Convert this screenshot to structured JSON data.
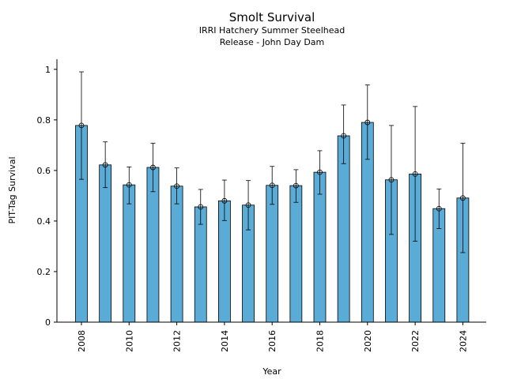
{
  "chart_data": {
    "type": "bar",
    "title": "Smolt Survival",
    "subtitle_lines": [
      "IRRI Hatchery Summer Steelhead",
      "Release - John Day Dam"
    ],
    "xlabel": "Year",
    "ylabel": "PIT-Tag Survival",
    "ylim": [
      0,
      1.04
    ],
    "yticks": [
      0,
      0.2,
      0.4,
      0.6,
      0.8,
      1
    ],
    "ytick_labels": [
      "0",
      "0.2",
      "0.4",
      "0.6",
      "0.8",
      "1"
    ],
    "categories": [
      2008,
      2009,
      2010,
      2011,
      2012,
      2013,
      2014,
      2015,
      2016,
      2017,
      2018,
      2019,
      2020,
      2021,
      2022,
      2023,
      2024
    ],
    "xtick_labels": [
      "2008",
      "2010",
      "2012",
      "2014",
      "2016",
      "2018",
      "2020",
      "2022",
      "2024"
    ],
    "values": [
      0.778,
      0.622,
      0.543,
      0.612,
      0.538,
      0.456,
      0.48,
      0.463,
      0.541,
      0.54,
      0.593,
      0.737,
      0.79,
      0.563,
      0.586,
      0.449,
      0.491
    ],
    "error_low": [
      0.565,
      0.532,
      0.468,
      0.516,
      0.468,
      0.387,
      0.402,
      0.365,
      0.466,
      0.474,
      0.506,
      0.627,
      0.644,
      0.347,
      0.32,
      0.37,
      0.275
    ],
    "error_high": [
      0.99,
      0.713,
      0.614,
      0.708,
      0.61,
      0.525,
      0.562,
      0.56,
      0.616,
      0.603,
      0.678,
      0.859,
      0.938,
      0.778,
      0.853,
      0.527,
      0.708
    ],
    "grid": false,
    "colors": {
      "bar": "#5aabd6",
      "edge": "#000000",
      "error": "#000000"
    }
  }
}
